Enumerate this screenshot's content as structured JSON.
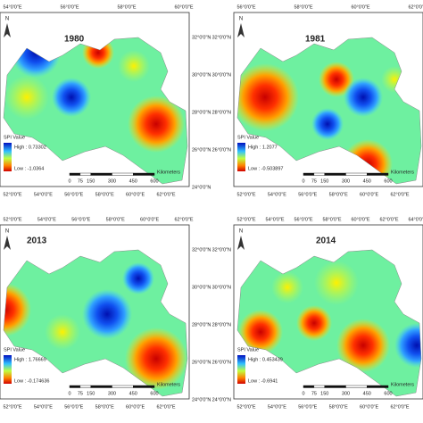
{
  "north": "N",
  "legend_title": "SPI Value",
  "scale_unit": "Kilometers",
  "panels": [
    {
      "title": "1980",
      "high": "High : 0.73302",
      "low": "Low : -1.0364",
      "scale": [
        0,
        75,
        150,
        300,
        450,
        600
      ],
      "lat_labels": [
        "32°0'0\"N",
        "30°0'0\"N",
        "28°0'0\"N",
        "26°0'0\"N",
        "24°0'0\"N"
      ],
      "lon_top": [
        "54°0'0\"E",
        "56°0'0\"E",
        "58°0'0\"E",
        "60°0'0\"E"
      ],
      "lon_bottom": [
        "52°0'0\"E",
        "54°0'0\"E",
        "56°0'0\"E",
        "58°0'0\"E",
        "60°0'0\"E",
        "62°0'0\"E"
      ]
    },
    {
      "title": "1981",
      "high": "High : 1.2077",
      "low": "Low : -0.503897",
      "scale": [
        0,
        75,
        150,
        300,
        450,
        600
      ],
      "lat_labels": [
        "32°0'0\"N",
        "30°0'0\"N",
        "28°0'0\"N",
        "26°0'0\"N"
      ],
      "lon_top": [
        "56°0'0\"E",
        "58°0'0\"E",
        "60°0'0\"E",
        "62°0'0\"E"
      ],
      "lon_bottom": [
        "52°0'0\"E",
        "54°0'0\"E",
        "56°0'0\"E",
        "58°0'0\"E",
        "60°0'0\"E",
        "62°0'0\"E"
      ]
    },
    {
      "title": "2013",
      "high": "High : 1.76669",
      "low": "Low : -0.174636",
      "scale": [
        0,
        75,
        150,
        300,
        450,
        600
      ],
      "lat_labels": [
        "32°0'0\"N",
        "30°0'0\"N",
        "28°0'0\"N",
        "26°0'0\"N",
        "24°0'0\"N"
      ],
      "lon_top": [
        "52°0'0\"E",
        "54°0'0\"E",
        "56°0'0\"E",
        "58°0'0\"E",
        "60°0'0\"E",
        "62°0'0\"E"
      ],
      "lon_bottom": [
        "52°0'0\"E",
        "54°0'0\"E",
        "56°0'0\"E",
        "58°0'0\"E",
        "60°0'0\"E",
        "62°0'0\"E"
      ]
    },
    {
      "title": "2014",
      "high": "High : 0.453439",
      "low": "Low : -0.6941",
      "scale": [
        0,
        75,
        150,
        300,
        450,
        600
      ],
      "lat_labels": [
        "32°0'0\"N",
        "30°0'0\"N",
        "28°0'0\"N",
        "26°0'0\"N",
        "24°0'0\"N"
      ],
      "lon_top": [
        "52°0'0\"E",
        "54°0'0\"E",
        "56°0'0\"E",
        "58°0'0\"E",
        "60°0'0\"E",
        "62°0'0\"E",
        "64°0'0\"E"
      ],
      "lon_bottom": [
        "52°0'0\"E",
        "54°0'0\"E",
        "56°0'0\"E",
        "58°0'0\"E",
        "60°0'0\"E",
        "62°0'0\"E"
      ]
    }
  ]
}
